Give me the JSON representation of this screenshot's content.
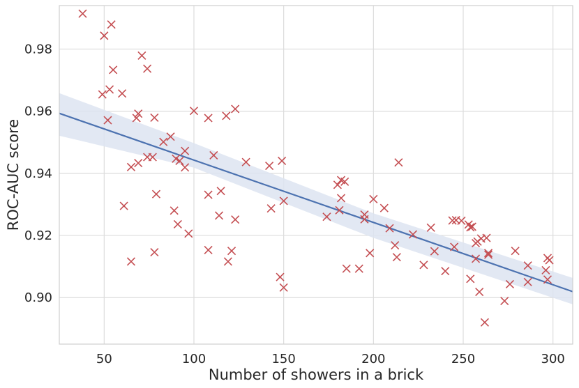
{
  "chart_data": {
    "type": "scatter",
    "title": "",
    "xlabel": "Number of showers in a brick",
    "ylabel": "ROC-AUC score",
    "xlim": [
      25,
      311
    ],
    "ylim": [
      0.885,
      0.994
    ],
    "xticks": [
      50,
      100,
      150,
      200,
      250,
      300
    ],
    "xtick_labels": [
      "50",
      "100",
      "150",
      "200",
      "250",
      "300"
    ],
    "yticks": [
      0.9,
      0.92,
      0.94,
      0.96,
      0.98
    ],
    "ytick_labels": [
      "0.90",
      "0.92",
      "0.94",
      "0.96",
      "0.98"
    ],
    "grid": true,
    "colors": {
      "points": "#c44e52",
      "line": "#4c72b0",
      "band": "#dde4f1",
      "grid": "#dcdcdc",
      "frame": "#cfcfcf"
    },
    "series": [
      {
        "name": "scores",
        "marker": "x",
        "points": [
          [
            38,
            0.9914
          ],
          [
            50,
            0.9843
          ],
          [
            54,
            0.9879
          ],
          [
            71,
            0.9779
          ],
          [
            55,
            0.9733
          ],
          [
            74,
            0.9737
          ],
          [
            49,
            0.9654
          ],
          [
            53,
            0.967
          ],
          [
            60,
            0.9657
          ],
          [
            52,
            0.9571
          ],
          [
            68,
            0.9578
          ],
          [
            69,
            0.9592
          ],
          [
            78,
            0.9579
          ],
          [
            100,
            0.9601
          ],
          [
            108,
            0.9578
          ],
          [
            118,
            0.9585
          ],
          [
            123,
            0.9607
          ],
          [
            83,
            0.9501
          ],
          [
            87,
            0.9518
          ],
          [
            95,
            0.9472
          ],
          [
            90,
            0.9447
          ],
          [
            92,
            0.944
          ],
          [
            95,
            0.9419
          ],
          [
            74,
            0.9452
          ],
          [
            77,
            0.9452
          ],
          [
            69,
            0.9433
          ],
          [
            65,
            0.942
          ],
          [
            111,
            0.9458
          ],
          [
            129,
            0.9436
          ],
          [
            142,
            0.9424
          ],
          [
            149,
            0.944
          ],
          [
            214,
            0.9435
          ],
          [
            61,
            0.9295
          ],
          [
            79,
            0.9333
          ],
          [
            89,
            0.928
          ],
          [
            91,
            0.9236
          ],
          [
            97,
            0.9206
          ],
          [
            108,
            0.9331
          ],
          [
            115,
            0.9343
          ],
          [
            114,
            0.9264
          ],
          [
            123,
            0.9251
          ],
          [
            143,
            0.9287
          ],
          [
            150,
            0.9311
          ],
          [
            174,
            0.926
          ],
          [
            180,
            0.9363
          ],
          [
            182,
            0.9378
          ],
          [
            184,
            0.9373
          ],
          [
            182,
            0.932
          ],
          [
            181,
            0.9281
          ],
          [
            195,
            0.9267
          ],
          [
            195,
            0.9252
          ],
          [
            200,
            0.9317
          ],
          [
            206,
            0.9288
          ],
          [
            209,
            0.9223
          ],
          [
            222,
            0.9203
          ],
          [
            232,
            0.9225
          ],
          [
            212,
            0.9168
          ],
          [
            213,
            0.913
          ],
          [
            234,
            0.9149
          ],
          [
            65,
            0.9116
          ],
          [
            78,
            0.9146
          ],
          [
            108,
            0.9153
          ],
          [
            119,
            0.9116
          ],
          [
            121,
            0.915
          ],
          [
            148,
            0.9066
          ],
          [
            150,
            0.9032
          ],
          [
            185,
            0.9093
          ],
          [
            192,
            0.9093
          ],
          [
            198,
            0.9143
          ],
          [
            228,
            0.9105
          ],
          [
            240,
            0.9085
          ],
          [
            244,
            0.9248
          ],
          [
            246,
            0.9249
          ],
          [
            249,
            0.9247
          ],
          [
            253,
            0.9235
          ],
          [
            254,
            0.9226
          ],
          [
            255,
            0.9228
          ],
          [
            245,
            0.9163
          ],
          [
            257,
            0.9175
          ],
          [
            258,
            0.918
          ],
          [
            260,
            0.919
          ],
          [
            263,
            0.9192
          ],
          [
            257,
            0.9125
          ],
          [
            264,
            0.9138
          ],
          [
            264,
            0.9143
          ],
          [
            254,
            0.906
          ],
          [
            259,
            0.9018
          ],
          [
            262,
            0.892
          ],
          [
            273,
            0.8989
          ],
          [
            276,
            0.9043
          ],
          [
            279,
            0.915
          ],
          [
            286,
            0.9103
          ],
          [
            286,
            0.905
          ],
          [
            296,
            0.9088
          ],
          [
            297,
            0.9127
          ],
          [
            298,
            0.912
          ],
          [
            297,
            0.9058
          ]
        ]
      }
    ],
    "regression": {
      "x": [
        25,
        311
      ],
      "y": [
        0.9593,
        0.9019
      ]
    },
    "confidence_band": {
      "x": [
        25,
        100,
        200,
        311
      ],
      "lower": [
        0.9521,
        0.9418,
        0.9192,
        0.8978
      ],
      "upper": [
        0.9658,
        0.9497,
        0.9271,
        0.9063
      ]
    }
  }
}
